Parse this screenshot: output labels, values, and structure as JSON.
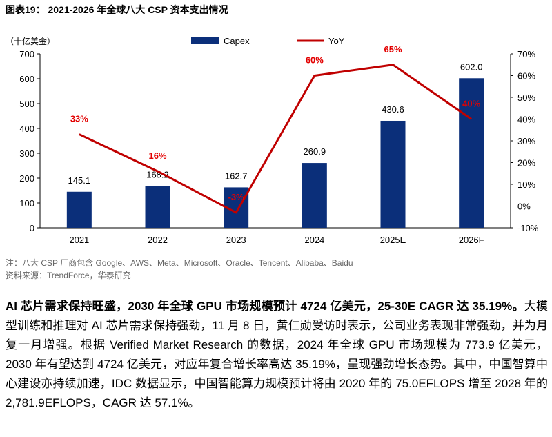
{
  "figure": {
    "title": "图表19： 2021-2026 年全球八大 CSP 资本支出情况",
    "unit_label": "（十亿美金）"
  },
  "chart_data": {
    "type": "bar",
    "categories": [
      "2021",
      "2022",
      "2023",
      "2024",
      "2025E",
      "2026F"
    ],
    "series": [
      {
        "name": "Capex",
        "type": "bar",
        "axis": "left",
        "color": "#0b2f7a",
        "values": [
          145.1,
          168.2,
          162.7,
          260.9,
          430.6,
          602.0
        ],
        "labels": [
          "145.1",
          "168.2",
          "162.7",
          "260.9",
          "430.6",
          "602.0"
        ]
      },
      {
        "name": "YoY",
        "type": "line",
        "axis": "right",
        "color": "#c00000",
        "values": [
          33,
          16,
          -3,
          60,
          65,
          40
        ],
        "labels": [
          "33%",
          "16%",
          "-3%",
          "60%",
          "65%",
          "40%"
        ]
      }
    ],
    "y_left": {
      "min": 0,
      "max": 700,
      "ticks": [
        "0",
        "100",
        "200",
        "300",
        "400",
        "500",
        "600",
        "700"
      ]
    },
    "y_right": {
      "min": -10,
      "max": 70,
      "ticks": [
        "-10%",
        "0%",
        "10%",
        "20%",
        "30%",
        "40%",
        "50%",
        "60%",
        "70%"
      ]
    },
    "legend_position": "top-center"
  },
  "notes": {
    "note": "注：八大 CSP 厂商包含 Google、AWS、Meta、Microsoft、Oracle、Tencent、Alibaba、Baidu",
    "source": "资料来源：TrendForce，华泰研究"
  },
  "body": {
    "lead": "AI 芯片需求保持旺盛，2030 年全球 GPU 市场规模预计 4724 亿美元，25-30E CAGR 达 35.19%。",
    "text": "大模型训练和推理对 AI 芯片需求保持强劲，11 月 8 日，黄仁勋受访时表示，公司业务表现非常强劲，并为月复一月增强。根据 Verified Market Research 的数据，2024 年全球 GPU 市场规模为 773.9 亿美元，2030 年有望达到 4724 亿美元，对应年复合增长率高达 35.19%，呈现强劲增长态势。其中，中国智算中心建设亦持续加速，IDC 数据显示，中国智能算力规模预计将由 2020 年的 75.0EFLOPS 增至 2028 年的 2,781.9EFLOPS，CAGR 达 57.1%。"
  }
}
